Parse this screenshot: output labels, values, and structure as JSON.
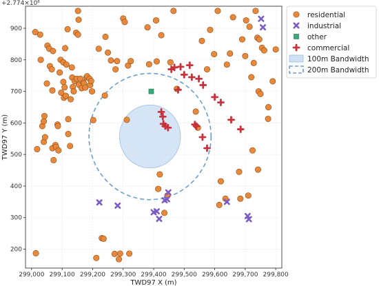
{
  "chart_data": {
    "type": "scatter",
    "title": "",
    "xlabel": "TWD97 X (m)",
    "ylabel": "TWD97 Y (m)",
    "y_offset_label": "+2.774×10⁶",
    "xlim": [
      298980,
      299820
    ],
    "ylim": [
      140,
      970
    ],
    "x_ticks": [
      299000,
      299100,
      299200,
      299300,
      299400,
      299500,
      299600,
      299700,
      299800
    ],
    "x_tick_labels": [
      "299,000",
      "299,100",
      "299,200",
      "299,300",
      "299,400",
      "299,500",
      "299,600",
      "299,700",
      "299,800"
    ],
    "y_ticks": [
      200,
      300,
      400,
      500,
      600,
      700,
      800,
      900
    ],
    "y_tick_labels": [
      "200",
      "300",
      "400",
      "500",
      "600",
      "700",
      "800",
      "900"
    ],
    "grid": true,
    "legend_position": "outside-right",
    "colors": {
      "residential": "#e8883a",
      "residential_edge": "#8a4a18",
      "industrial": "#7b5cc4",
      "other": "#3aa877",
      "commercial": "#c8323c",
      "band100_fill": "#cfe0f3",
      "band100_edge": "#9fbfe3",
      "band200": "#6a9fd0",
      "grid": "#e6e6e6"
    },
    "series": [
      {
        "name": "residential",
        "marker": "circle",
        "points": [
          [
            299012,
            888
          ],
          [
            299018,
            517
          ],
          [
            299014,
            187
          ],
          [
            299028,
            880
          ],
          [
            299030,
            800
          ],
          [
            299035,
            590
          ],
          [
            299040,
            605
          ],
          [
            299040,
            540
          ],
          [
            299042,
            622
          ],
          [
            299044,
            555
          ],
          [
            299050,
            725
          ],
          [
            299052,
            845
          ],
          [
            299058,
            835
          ],
          [
            299060,
            780
          ],
          [
            299066,
            770
          ],
          [
            299068,
            520
          ],
          [
            299068,
            703
          ],
          [
            299070,
            828
          ],
          [
            299072,
            482
          ],
          [
            299078,
            530
          ],
          [
            299080,
            524
          ],
          [
            299085,
            595
          ],
          [
            299086,
            590
          ],
          [
            299088,
            513
          ],
          [
            299092,
            760
          ],
          [
            299095,
            800
          ],
          [
            299097,
            696
          ],
          [
            299104,
            792
          ],
          [
            299104,
            730
          ],
          [
            299106,
            680
          ],
          [
            299108,
            713
          ],
          [
            299110,
            837
          ],
          [
            299112,
            686
          ],
          [
            299114,
            785
          ],
          [
            299118,
            897
          ],
          [
            299120,
            612
          ],
          [
            299120,
            565
          ],
          [
            299126,
            527
          ],
          [
            299128,
            675
          ],
          [
            299132,
            776
          ],
          [
            299133,
            744
          ],
          [
            299135,
            714
          ],
          [
            299138,
            700
          ],
          [
            299141,
            733
          ],
          [
            299146,
            886
          ],
          [
            299148,
            740
          ],
          [
            299152,
            880
          ],
          [
            299152,
            955
          ],
          [
            299154,
            927
          ],
          [
            299155,
            721
          ],
          [
            299160,
            740
          ],
          [
            299164,
            710
          ],
          [
            299170,
            728
          ],
          [
            299172,
            725
          ],
          [
            299176,
            712
          ],
          [
            299180,
            745
          ],
          [
            299182,
            748
          ],
          [
            299190,
            740
          ],
          [
            299192,
            720
          ],
          [
            299195,
            733
          ],
          [
            299198,
            700
          ],
          [
            299202,
            609
          ],
          [
            299212,
            172
          ],
          [
            299220,
            835
          ],
          [
            299230,
            235
          ],
          [
            299236,
            233
          ],
          [
            299240,
            687
          ],
          [
            299242,
            873
          ],
          [
            299250,
            823
          ],
          [
            299260,
            798
          ],
          [
            299272,
            185
          ],
          [
            299275,
            770
          ],
          [
            299280,
            796
          ],
          [
            299286,
            168
          ],
          [
            299290,
            186
          ],
          [
            299300,
            931
          ],
          [
            299305,
            920
          ],
          [
            299312,
            610
          ],
          [
            299316,
            782
          ],
          [
            299320,
            186
          ],
          [
            299325,
            796
          ],
          [
            299380,
            903
          ],
          [
            299385,
            786
          ],
          [
            299408,
            925
          ],
          [
            299410,
            795
          ],
          [
            299415,
            391
          ],
          [
            299420,
            437
          ],
          [
            299425,
            878
          ],
          [
            299435,
            315
          ],
          [
            299445,
            370
          ],
          [
            299455,
            792
          ],
          [
            299465,
            955
          ],
          [
            299476,
            708
          ],
          [
            299538,
            636
          ],
          [
            299545,
            585
          ],
          [
            299558,
            860
          ],
          [
            299575,
            770
          ],
          [
            299585,
            895
          ],
          [
            299598,
            818
          ],
          [
            299610,
            955
          ],
          [
            299615,
            340
          ],
          [
            299620,
            415
          ],
          [
            299635,
            360
          ],
          [
            299640,
            785
          ],
          [
            299650,
            820
          ],
          [
            299660,
            935
          ],
          [
            299680,
            445
          ],
          [
            299684,
            360
          ],
          [
            299690,
            865
          ],
          [
            299700,
            812
          ],
          [
            299703,
            925
          ],
          [
            299710,
            370
          ],
          [
            299714,
            905
          ],
          [
            299720,
            745
          ],
          [
            299724,
            513
          ],
          [
            299728,
            790
          ],
          [
            299734,
            955
          ],
          [
            299740,
            870
          ],
          [
            299742,
            452
          ],
          [
            299744,
            700
          ],
          [
            299746,
            865
          ],
          [
            299750,
            692
          ],
          [
            299755,
            838
          ],
          [
            299762,
            830
          ],
          [
            299775,
            613
          ],
          [
            299776,
            650
          ],
          [
            299790,
            732
          ],
          [
            299800,
            833
          ]
        ]
      },
      {
        "name": "industrial",
        "marker": "x",
        "points": [
          [
            299222,
            348
          ],
          [
            299282,
            338
          ],
          [
            299400,
            317
          ],
          [
            299410,
            320
          ],
          [
            299418,
            296
          ],
          [
            299436,
            355
          ],
          [
            299444,
            358
          ],
          [
            299448,
            380
          ],
          [
            299640,
            350
          ],
          [
            299708,
            305
          ],
          [
            299712,
            295
          ],
          [
            299752,
            930
          ],
          [
            299758,
            903
          ]
        ]
      },
      {
        "name": "other",
        "marker": "square",
        "points": [
          [
            299392,
            700
          ]
        ]
      },
      {
        "name": "commercial",
        "marker": "plus",
        "points": [
          [
            299425,
            635
          ],
          [
            299430,
            620
          ],
          [
            299432,
            597
          ],
          [
            299438,
            590
          ],
          [
            299447,
            585
          ],
          [
            299458,
            770
          ],
          [
            299468,
            776
          ],
          [
            299480,
            705
          ],
          [
            299488,
            778
          ],
          [
            299500,
            753
          ],
          [
            299518,
            783
          ],
          [
            299525,
            745
          ],
          [
            299535,
            595
          ],
          [
            299540,
            590
          ],
          [
            299548,
            740
          ],
          [
            299560,
            555
          ],
          [
            299562,
            720
          ],
          [
            299575,
            520
          ],
          [
            299600,
            682
          ],
          [
            299620,
            665
          ],
          [
            299654,
            610
          ],
          [
            299685,
            580
          ]
        ]
      },
      {
        "name": "100m Bandwidth",
        "marker": "ring-fill",
        "center": [
          299388,
          557
        ],
        "radius": 100
      },
      {
        "name": "200m Bandwidth",
        "marker": "ring-dashed",
        "center": [
          299388,
          557
        ],
        "radius": 200
      }
    ]
  }
}
